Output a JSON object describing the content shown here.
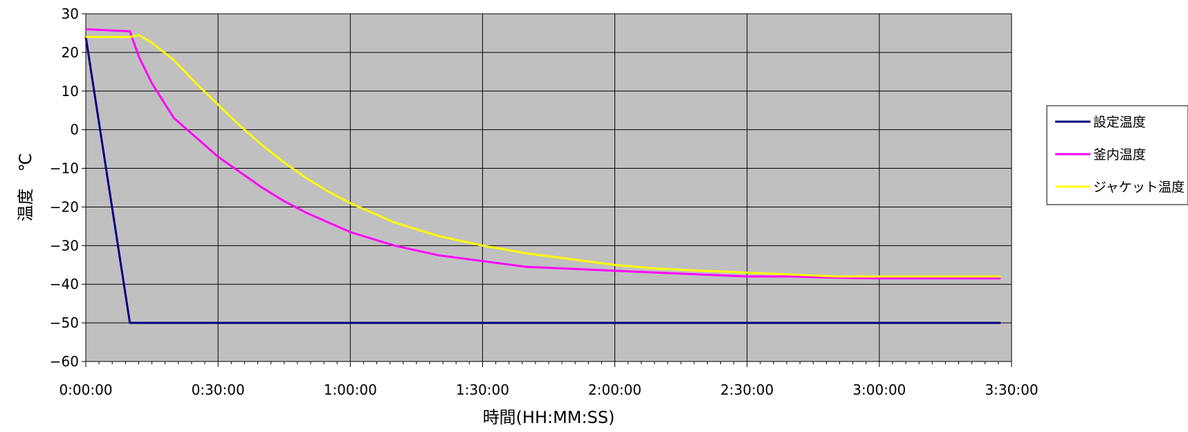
{
  "chart_data": {
    "type": "line",
    "xlabel": "時間(HH:MM:SS)",
    "ylabel": "温度　℃",
    "xlim": [
      0,
      210
    ],
    "ylim": [
      -60,
      30
    ],
    "grid": true,
    "legend_position": "right",
    "x_ticks": [
      {
        "v": 0,
        "label": "0:00:00"
      },
      {
        "v": 30,
        "label": "0:30:00"
      },
      {
        "v": 60,
        "label": "1:00:00"
      },
      {
        "v": 90,
        "label": "1:30:00"
      },
      {
        "v": 120,
        "label": "2:00:00"
      },
      {
        "v": 150,
        "label": "2:30:00"
      },
      {
        "v": 180,
        "label": "3:00:00"
      },
      {
        "v": 210,
        "label": "3:30:00"
      }
    ],
    "y_ticks": [
      {
        "v": 30,
        "label": "30"
      },
      {
        "v": 20,
        "label": "20"
      },
      {
        "v": 10,
        "label": "10"
      },
      {
        "v": 0,
        "label": "0"
      },
      {
        "v": -10,
        "label": "−10"
      },
      {
        "v": -20,
        "label": "−20"
      },
      {
        "v": -30,
        "label": "−30"
      },
      {
        "v": -40,
        "label": "−40"
      },
      {
        "v": -50,
        "label": "−50"
      },
      {
        "v": -60,
        "label": "−60"
      }
    ],
    "series": [
      {
        "name": "設定温度",
        "color": "#000080",
        "points": [
          [
            0,
            24
          ],
          [
            10,
            -50
          ],
          [
            207.5,
            -50
          ]
        ]
      },
      {
        "name": "釜内温度",
        "color": "#ff00ff",
        "points": [
          [
            0,
            26
          ],
          [
            10,
            25.5
          ],
          [
            12,
            19
          ],
          [
            15,
            12
          ],
          [
            20,
            3
          ],
          [
            25,
            -2
          ],
          [
            30,
            -7
          ],
          [
            35,
            -11
          ],
          [
            40,
            -15
          ],
          [
            45,
            -18.5
          ],
          [
            50,
            -21.5
          ],
          [
            55,
            -24
          ],
          [
            60,
            -26.5
          ],
          [
            70,
            -30
          ],
          [
            80,
            -32.5
          ],
          [
            90,
            -34
          ],
          [
            100,
            -35.5
          ],
          [
            110,
            -36
          ],
          [
            120,
            -36.5
          ],
          [
            130,
            -37
          ],
          [
            140,
            -37.5
          ],
          [
            150,
            -38
          ],
          [
            160,
            -38
          ],
          [
            170,
            -38.3
          ],
          [
            180,
            -38.5
          ],
          [
            190,
            -38.5
          ],
          [
            200,
            -38.5
          ],
          [
            207.5,
            -38.5
          ]
        ]
      },
      {
        "name": "ジャケット温度",
        "color": "#ffff00",
        "points": [
          [
            0,
            24
          ],
          [
            10,
            24
          ],
          [
            12,
            24.5
          ],
          [
            15,
            22.5
          ],
          [
            20,
            18
          ],
          [
            25,
            12
          ],
          [
            30,
            6.5
          ],
          [
            35,
            1
          ],
          [
            40,
            -4
          ],
          [
            45,
            -8.5
          ],
          [
            50,
            -12.5
          ],
          [
            55,
            -16
          ],
          [
            60,
            -19
          ],
          [
            70,
            -24
          ],
          [
            80,
            -27.5
          ],
          [
            90,
            -30
          ],
          [
            100,
            -32
          ],
          [
            110,
            -33.5
          ],
          [
            120,
            -35
          ],
          [
            130,
            -36
          ],
          [
            140,
            -36.5
          ],
          [
            150,
            -37
          ],
          [
            160,
            -37.5
          ],
          [
            170,
            -38
          ],
          [
            180,
            -38
          ],
          [
            190,
            -38
          ],
          [
            200,
            -38
          ],
          [
            207.5,
            -38
          ]
        ]
      }
    ]
  }
}
